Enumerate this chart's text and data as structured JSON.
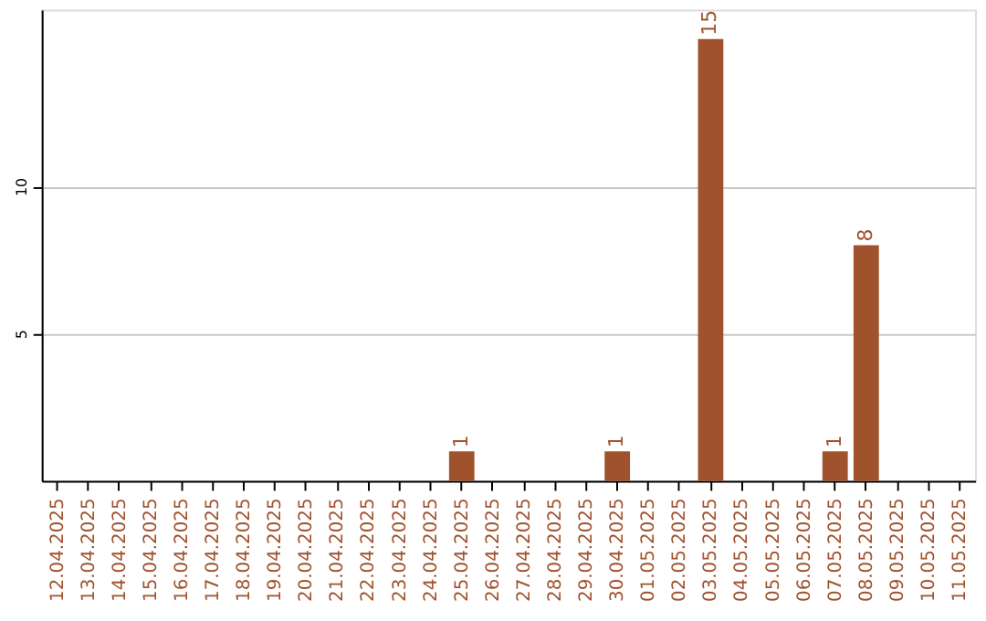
{
  "chart_data": {
    "type": "bar",
    "categories": [
      "12.04.2025",
      "13.04.2025",
      "14.04.2025",
      "15.04.2025",
      "16.04.2025",
      "17.04.2025",
      "18.04.2025",
      "19.04.2025",
      "20.04.2025",
      "21.04.2025",
      "22.04.2025",
      "23.04.2025",
      "24.04.2025",
      "25.04.2025",
      "26.04.2025",
      "27.04.2025",
      "28.04.2025",
      "29.04.2025",
      "30.04.2025",
      "01.05.2025",
      "02.05.2025",
      "03.05.2025",
      "04.05.2025",
      "05.05.2025",
      "06.05.2025",
      "07.05.2025",
      "08.05.2025",
      "09.05.2025",
      "10.05.2025",
      "11.05.2025"
    ],
    "values": [
      0,
      0,
      0,
      0,
      0,
      0,
      0,
      0,
      0,
      0,
      0,
      0,
      0,
      1,
      0,
      0,
      0,
      0,
      1,
      0,
      0,
      15,
      0,
      0,
      0,
      1,
      8,
      0,
      0,
      0
    ],
    "value_labels": [
      null,
      null,
      null,
      null,
      null,
      null,
      null,
      null,
      null,
      null,
      null,
      null,
      null,
      "1",
      null,
      null,
      null,
      null,
      "1",
      null,
      null,
      "15",
      null,
      null,
      null,
      "1",
      "8",
      null,
      null,
      null
    ],
    "color": "#a0522d",
    "ylim": [
      0,
      16
    ],
    "yticks": [
      5,
      10
    ],
    "grid": "y"
  }
}
